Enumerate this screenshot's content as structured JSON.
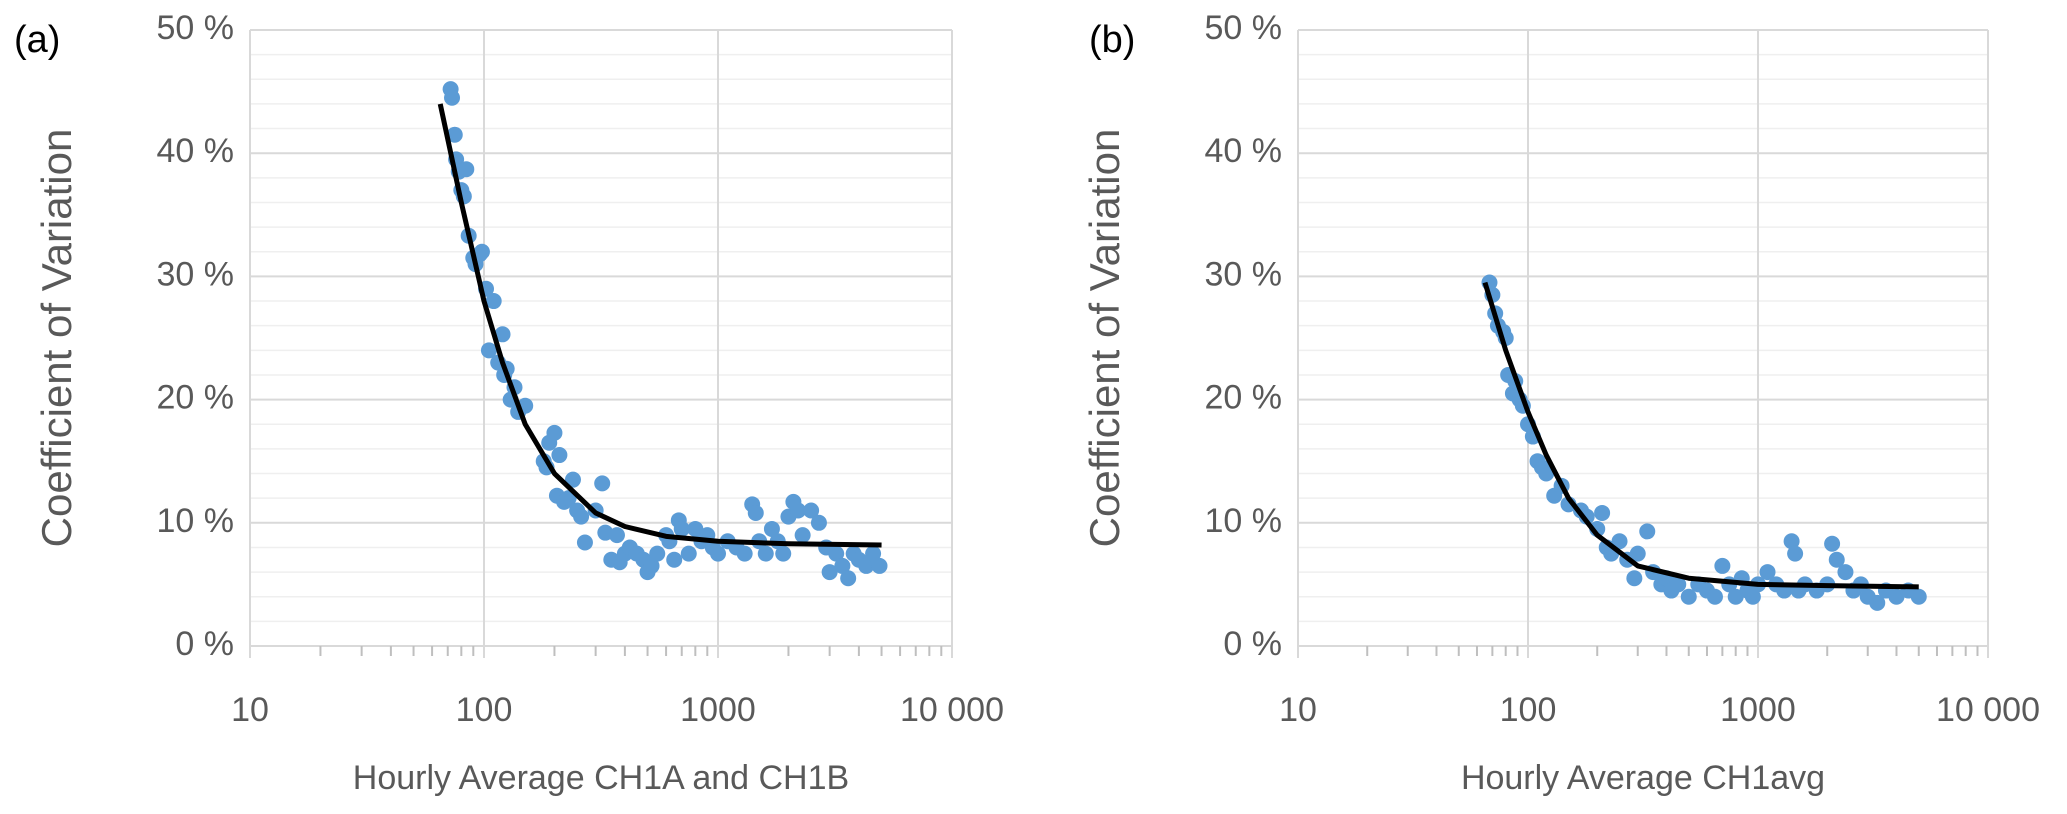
{
  "chart_data": [
    {
      "type": "scatter",
      "panel_label": "(a)",
      "y_label": "Coefficient of Variation",
      "x_label": "Hourly Average CH1A and CH1B",
      "x_log": true,
      "grid": true,
      "color": "#5b9bd5",
      "xlim": [
        10,
        10000
      ],
      "xticks": [
        10,
        100,
        1000,
        {
          "value": 10000,
          "label": "10 000"
        }
      ],
      "x_minor_ticks": [
        20,
        30,
        40,
        50,
        60,
        70,
        80,
        90,
        200,
        300,
        400,
        500,
        600,
        700,
        800,
        900,
        2000,
        3000,
        4000,
        5000,
        6000,
        7000,
        8000,
        9000
      ],
      "ylim": [
        0,
        50
      ],
      "yticks": [
        {
          "value": 0,
          "label": "0 %"
        },
        {
          "value": 10,
          "label": "10 %"
        },
        {
          "value": 20,
          "label": "20 %"
        },
        {
          "value": 30,
          "label": "30 %"
        },
        {
          "value": 40,
          "label": "40 %"
        },
        {
          "value": 50,
          "label": "50 %"
        }
      ],
      "y_minor_ticks": [
        2,
        4,
        6,
        8,
        12,
        14,
        16,
        18,
        22,
        24,
        26,
        28,
        32,
        34,
        36,
        38,
        42,
        44,
        46,
        48
      ],
      "x": [
        72,
        73,
        75,
        76,
        78,
        80,
        82,
        84,
        86,
        90,
        92,
        96,
        98,
        102,
        105,
        110,
        115,
        120,
        122,
        125,
        130,
        135,
        140,
        150,
        180,
        185,
        190,
        200,
        205,
        210,
        220,
        230,
        240,
        250,
        260,
        270,
        300,
        320,
        330,
        350,
        370,
        380,
        400,
        420,
        450,
        480,
        500,
        520,
        550,
        600,
        620,
        650,
        680,
        700,
        750,
        800,
        850,
        900,
        950,
        1000,
        1100,
        1200,
        1300,
        1400,
        1450,
        1500,
        1600,
        1700,
        1800,
        1900,
        2000,
        2100,
        2200,
        2300,
        2500,
        2700,
        2900,
        3000,
        3200,
        3400,
        3600,
        3800,
        4000,
        4300,
        4600,
        4900
      ],
      "values": [
        45.2,
        44.5,
        41.5,
        39.5,
        38.5,
        37,
        36.5,
        38.7,
        33.3,
        31.5,
        31,
        31.8,
        32,
        29,
        24,
        28,
        23,
        25.3,
        22,
        22.5,
        20,
        21,
        19,
        19.5,
        15,
        14.5,
        16.5,
        17.3,
        12.2,
        15.5,
        11.7,
        12,
        13.5,
        11,
        10.5,
        8.4,
        11,
        13.2,
        9.2,
        7,
        9,
        6.8,
        7.5,
        8,
        7.5,
        7,
        6,
        6.5,
        7.5,
        9,
        8.5,
        7,
        10.2,
        9.5,
        7.5,
        9.5,
        8.5,
        9,
        8,
        7.5,
        8.5,
        8,
        7.5,
        11.5,
        10.8,
        8.5,
        7.5,
        9.5,
        8.5,
        7.5,
        10.5,
        11.7,
        11,
        9,
        11,
        10,
        8,
        6,
        7.5,
        6.5,
        5.5,
        7.5,
        7,
        6.5,
        7.5,
        6.5
      ],
      "trendline": {
        "color": "#000000",
        "x": [
          65,
          80,
          100,
          120,
          150,
          200,
          300,
          400,
          600,
          1000,
          2000,
          5000
        ],
        "values": [
          44,
          36,
          28,
          23,
          18,
          14,
          10.8,
          9.7,
          8.9,
          8.5,
          8.3,
          8.2
        ]
      }
    },
    {
      "type": "scatter",
      "panel_label": "(b)",
      "y_label": "Coefficient of Variation",
      "x_label": "Hourly Average CH1avg",
      "x_log": true,
      "grid": true,
      "color": "#5b9bd5",
      "xlim": [
        10,
        10000
      ],
      "xticks": [
        10,
        100,
        1000,
        {
          "value": 10000,
          "label": "10 000"
        }
      ],
      "x_minor_ticks": [
        20,
        30,
        40,
        50,
        60,
        70,
        80,
        90,
        200,
        300,
        400,
        500,
        600,
        700,
        800,
        900,
        2000,
        3000,
        4000,
        5000,
        6000,
        7000,
        8000,
        9000
      ],
      "ylim": [
        0,
        50
      ],
      "yticks": [
        {
          "value": 0,
          "label": "0 %"
        },
        {
          "value": 10,
          "label": "10 %"
        },
        {
          "value": 20,
          "label": "20 %"
        },
        {
          "value": 30,
          "label": "30 %"
        },
        {
          "value": 40,
          "label": "40 %"
        },
        {
          "value": 50,
          "label": "50 %"
        }
      ],
      "y_minor_ticks": [
        2,
        4,
        6,
        8,
        12,
        14,
        16,
        18,
        22,
        24,
        26,
        28,
        32,
        34,
        36,
        38,
        42,
        44,
        46,
        48
      ],
      "x": [
        68,
        70,
        72,
        74,
        78,
        80,
        82,
        86,
        88,
        92,
        95,
        100,
        105,
        110,
        115,
        120,
        130,
        140,
        150,
        170,
        180,
        200,
        210,
        220,
        230,
        250,
        270,
        290,
        300,
        330,
        350,
        380,
        400,
        420,
        450,
        500,
        550,
        600,
        650,
        700,
        750,
        800,
        850,
        900,
        950,
        1000,
        1100,
        1200,
        1300,
        1400,
        1450,
        1500,
        1600,
        1800,
        2000,
        2100,
        2200,
        2400,
        2600,
        2800,
        3000,
        3300,
        3600,
        4000,
        4500,
        5000
      ],
      "values": [
        29.5,
        28.5,
        27,
        26,
        25.5,
        25,
        22,
        20.5,
        21.5,
        20,
        19.5,
        18,
        17,
        15,
        14.5,
        14,
        12.2,
        13,
        11.5,
        11,
        10.5,
        9.5,
        10.8,
        8,
        7.5,
        8.5,
        7,
        5.5,
        7.5,
        9.3,
        6,
        5,
        5.5,
        4.5,
        5,
        4,
        5,
        4.5,
        4,
        6.5,
        5,
        4,
        5.5,
        4.5,
        4,
        5,
        6,
        5,
        4.5,
        8.5,
        7.5,
        4.5,
        5,
        4.5,
        5,
        8.3,
        7,
        6,
        4.5,
        5,
        4,
        3.5,
        4.5,
        4,
        4.5,
        4
      ],
      "trendline": {
        "color": "#000000",
        "x": [
          65,
          80,
          100,
          120,
          150,
          200,
          300,
          500,
          1000,
          2000,
          5000
        ],
        "values": [
          29.5,
          24,
          19,
          15.5,
          12,
          9,
          6.5,
          5.5,
          5,
          4.9,
          4.8
        ]
      }
    }
  ]
}
